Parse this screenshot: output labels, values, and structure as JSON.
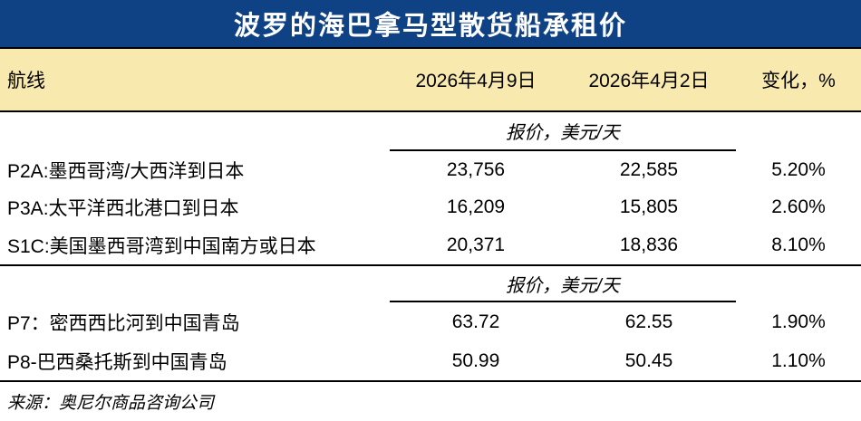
{
  "title": "波罗的海巴拿马型散货船承租价",
  "header": {
    "route": "航线",
    "date1": "2026年4月9日",
    "date2": "2026年4月2日",
    "change": "变化，%"
  },
  "sections": [
    {
      "unit_label": "报价，美元/天",
      "rows": [
        {
          "route": "P2A:墨西哥湾/大西洋到日本",
          "v1": "23,756",
          "v2": "22,585",
          "chg": "5.20%"
        },
        {
          "route": "P3A:太平洋西北港口到日本",
          "v1": "16,209",
          "v2": "15,805",
          "chg": "2.60%"
        },
        {
          "route": "S1C:美国墨西哥湾到中国南方或日本",
          "v1": "20,371",
          "v2": "18,836",
          "chg": "8.10%"
        }
      ]
    },
    {
      "unit_label": "报价，美元/天",
      "rows": [
        {
          "route": "P7：密西西比河到中国青岛",
          "v1": "63.72",
          "v2": "62.55",
          "chg": "1.90%"
        },
        {
          "route": "P8-巴西桑托斯到中国青岛",
          "v1": "50.99",
          "v2": "50.45",
          "chg": "1.10%"
        }
      ]
    }
  ],
  "source": "来源：奥尼尔商品咨询公司",
  "colors": {
    "title_bg": "#0f4284",
    "title_text": "#ffffff",
    "header_bg": "#f8e9ae",
    "rule": "#000000",
    "body_text": "#000000"
  },
  "chart_data": {
    "type": "table",
    "title": "波罗的海巴拿马型散货船承租价",
    "columns": [
      "航线",
      "2026年4月9日",
      "2026年4月2日",
      "变化，%"
    ],
    "groups": [
      {
        "unit": "报价，美元/天",
        "rows": [
          [
            "P2A:墨西哥湾/大西洋到日本",
            23756,
            22585,
            "5.20%"
          ],
          [
            "P3A:太平洋西北港口到日本",
            16209,
            15805,
            "2.60%"
          ],
          [
            "S1C:美国墨西哥湾到中国南方或日本",
            20371,
            18836,
            "8.10%"
          ]
        ]
      },
      {
        "unit": "报价，美元/天",
        "rows": [
          [
            "P7：密西西比河到中国青岛",
            63.72,
            62.55,
            "1.90%"
          ],
          [
            "P8-巴西桑托斯到中国青岛",
            50.99,
            50.45,
            "1.10%"
          ]
        ]
      }
    ],
    "source": "来源：奥尼尔商品咨询公司",
    "layout": {
      "grid": "off",
      "section_rules": "horizontal black rules between sections"
    }
  }
}
